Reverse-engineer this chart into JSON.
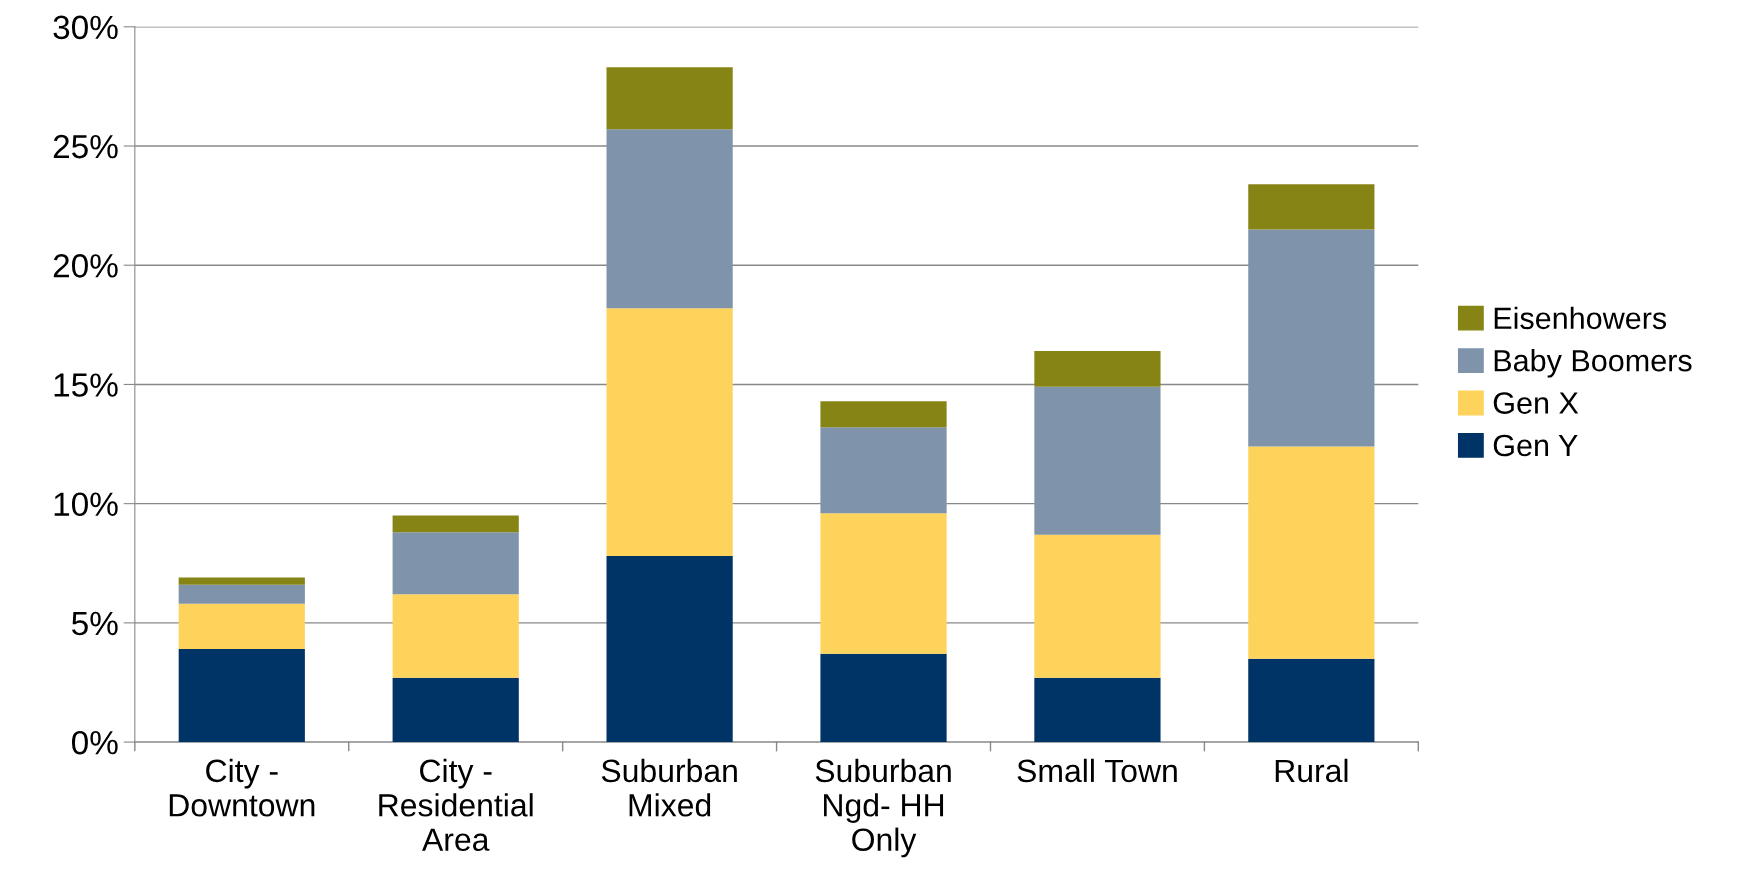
{
  "chart_data": {
    "type": "bar",
    "stacked": true,
    "categories": [
      "City -\nDowntown",
      "City -\nResidential\nArea",
      "Suburban\nMixed",
      "Suburban\nNgd- HH\nOnly",
      "Small Town",
      "Rural"
    ],
    "series": [
      {
        "name": "Gen Y",
        "color": "#003366",
        "values": [
          3.9,
          2.7,
          7.8,
          3.7,
          2.7,
          3.5
        ]
      },
      {
        "name": "Gen X",
        "color": "#fdd35c",
        "values": [
          1.9,
          3.5,
          10.4,
          5.9,
          6.0,
          8.9
        ]
      },
      {
        "name": "Baby Boomers",
        "color": "#7f94aa",
        "values": [
          0.8,
          2.6,
          7.5,
          3.6,
          6.2,
          9.1
        ]
      },
      {
        "name": "Eisenhowers",
        "color": "#878416",
        "values": [
          0.3,
          0.7,
          2.6,
          1.1,
          1.5,
          1.9
        ]
      }
    ],
    "ylim": [
      0,
      30
    ],
    "yticks": [
      {
        "value": 0,
        "label": "0%"
      },
      {
        "value": 5,
        "label": "5%"
      },
      {
        "value": 10,
        "label": "10%"
      },
      {
        "value": 15,
        "label": "15%"
      },
      {
        "value": 20,
        "label": "20%"
      },
      {
        "value": 25,
        "label": "25%"
      },
      {
        "value": 30,
        "label": "30%"
      }
    ],
    "grid": "y",
    "legend": "right"
  }
}
